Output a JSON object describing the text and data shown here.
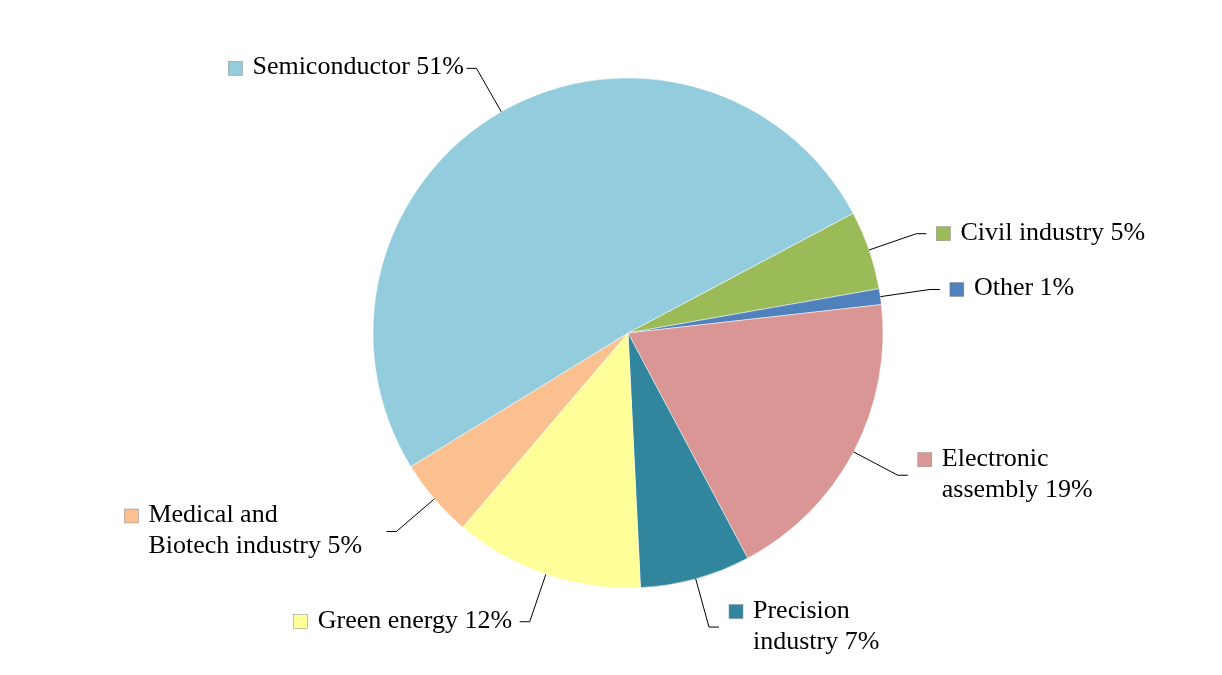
{
  "chart_data": {
    "type": "pie",
    "categories": [
      "Civil industry",
      "Other",
      "Electronic assembly",
      "Precision industry",
      "Green energy",
      "Medical and Biotech industry",
      "Semiconductor"
    ],
    "values": [
      5,
      1,
      19,
      7,
      12,
      5,
      51
    ],
    "colors": [
      "#9bbb59",
      "#4f81bd",
      "#d99694",
      "#31859c",
      "#ffff99",
      "#fac090",
      "#93cddd"
    ],
    "value_labels": [
      "5%",
      "1%",
      "19%",
      "7%",
      "12%",
      "5%",
      "51%"
    ],
    "legend": "right"
  }
}
